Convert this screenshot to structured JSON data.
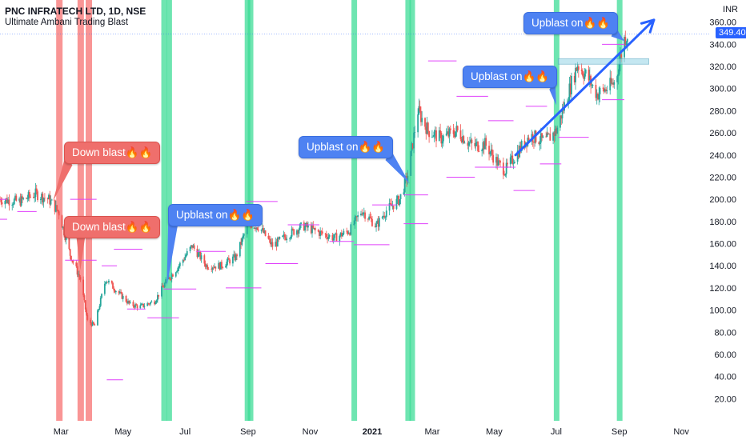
{
  "header": {
    "title": "PNC INFRATECH LTD, 1D, NSE",
    "indicator": "Ultimate Ambani Trading Blast"
  },
  "currency_label": "INR",
  "last_price_label": "349.40",
  "colors": {
    "up_candle": "#26a69a",
    "down_candle": "#ef5350",
    "blast_up_band": "#3ddc97",
    "blast_down_band": "#f77b7b",
    "callout_up": "#4e82f2",
    "callout_down": "#ef6f6c",
    "level_line": "#e040fb",
    "trend_arrow": "#2962ff",
    "price_tag": "#2962ff"
  },
  "chart_data": {
    "type": "candlestick",
    "title": "PNC INFRATECH LTD, 1D, NSE",
    "subtitle": "Ultimate Ambani Trading Blast",
    "y_unit": "INR",
    "ylim": [
      0,
      380
    ],
    "y_ticks": [
      20,
      40,
      60,
      80,
      100,
      120,
      140,
      160,
      180,
      200,
      220,
      240,
      260,
      280,
      300,
      320,
      340,
      360
    ],
    "x_tick_labels": [
      "Mar",
      "May",
      "Jul",
      "Sep",
      "Nov",
      "2021",
      "Mar",
      "May",
      "Jul",
      "Sep",
      "Nov"
    ],
    "x_range": [
      "2020-01-01",
      "2021-11-30"
    ],
    "last_price": 349.4,
    "close_path": [
      [
        "2020-01-01",
        200
      ],
      [
        "2020-01-20",
        198
      ],
      [
        "2020-02-05",
        205
      ],
      [
        "2020-02-18",
        200
      ],
      [
        "2020-02-28",
        188
      ],
      [
        "2020-03-10",
        150
      ],
      [
        "2020-03-20",
        128
      ],
      [
        "2020-03-27",
        90
      ],
      [
        "2020-04-03",
        86
      ],
      [
        "2020-04-14",
        128
      ],
      [
        "2020-04-25",
        117
      ],
      [
        "2020-05-08",
        105
      ],
      [
        "2020-05-18",
        103
      ],
      [
        "2020-06-01",
        108
      ],
      [
        "2020-06-12",
        125
      ],
      [
        "2020-06-25",
        140
      ],
      [
        "2020-07-08",
        158
      ],
      [
        "2020-07-22",
        140
      ],
      [
        "2020-08-05",
        140
      ],
      [
        "2020-08-20",
        148
      ],
      [
        "2020-09-01",
        178
      ],
      [
        "2020-09-12",
        175
      ],
      [
        "2020-09-25",
        158
      ],
      [
        "2020-10-10",
        168
      ],
      [
        "2020-10-25",
        176
      ],
      [
        "2020-11-10",
        170
      ],
      [
        "2020-11-25",
        165
      ],
      [
        "2020-12-10",
        172
      ],
      [
        "2020-12-22",
        190
      ],
      [
        "2021-01-05",
        176
      ],
      [
        "2021-01-15",
        190
      ],
      [
        "2021-01-28",
        200
      ],
      [
        "2021-02-05",
        222
      ],
      [
        "2021-02-15",
        280
      ],
      [
        "2021-02-25",
        262
      ],
      [
        "2021-03-10",
        255
      ],
      [
        "2021-03-25",
        262
      ],
      [
        "2021-04-10",
        248
      ],
      [
        "2021-04-22",
        250
      ],
      [
        "2021-05-05",
        232
      ],
      [
        "2021-05-12",
        226
      ],
      [
        "2021-05-22",
        240
      ],
      [
        "2021-06-05",
        258
      ],
      [
        "2021-06-20",
        252
      ],
      [
        "2021-07-01",
        262
      ],
      [
        "2021-07-08",
        282
      ],
      [
        "2021-07-22",
        322
      ],
      [
        "2021-08-01",
        310
      ],
      [
        "2021-08-10",
        295
      ],
      [
        "2021-08-20",
        300
      ],
      [
        "2021-08-28",
        306
      ],
      [
        "2021-09-06",
        345
      ],
      [
        "2021-09-09",
        349.4
      ]
    ],
    "blast_up_dates": [
      "2020-06-10",
      "2020-06-15",
      "2020-08-31",
      "2020-09-03",
      "2020-12-14",
      "2021-02-05",
      "2021-02-09",
      "2021-07-01",
      "2021-09-01"
    ],
    "blast_down_dates": [
      "2020-02-28",
      "2020-03-20",
      "2020-03-28"
    ],
    "levels": [
      {
        "y": 200,
        "from": "2020-01-01",
        "to": "2020-01-08"
      },
      {
        "y": 182,
        "from": "2020-01-01",
        "to": "2020-01-08"
      },
      {
        "y": 189,
        "from": "2020-01-18",
        "to": "2020-02-06"
      },
      {
        "y": 200,
        "from": "2020-03-10",
        "to": "2020-04-05"
      },
      {
        "y": 145,
        "from": "2020-03-05",
        "to": "2020-04-05"
      },
      {
        "y": 140,
        "from": "2020-04-10",
        "to": "2020-04-25"
      },
      {
        "y": 155,
        "from": "2020-04-22",
        "to": "2020-05-20"
      },
      {
        "y": 37,
        "from": "2020-04-15",
        "to": "2020-05-01"
      },
      {
        "y": 101,
        "from": "2020-05-05",
        "to": "2020-05-23"
      },
      {
        "y": 93,
        "from": "2020-05-25",
        "to": "2020-06-25"
      },
      {
        "y": 119,
        "from": "2020-06-10",
        "to": "2020-07-12"
      },
      {
        "y": 153,
        "from": "2020-07-12",
        "to": "2020-08-10"
      },
      {
        "y": 120,
        "from": "2020-08-10",
        "to": "2020-09-14"
      },
      {
        "y": 198,
        "from": "2020-08-30",
        "to": "2020-09-30"
      },
      {
        "y": 142,
        "from": "2020-09-18",
        "to": "2020-10-20"
      },
      {
        "y": 177,
        "from": "2020-10-10",
        "to": "2020-11-10"
      },
      {
        "y": 162,
        "from": "2020-11-20",
        "to": "2020-12-14"
      },
      {
        "y": 159,
        "from": "2020-12-14",
        "to": "2021-01-18"
      },
      {
        "y": 195,
        "from": "2021-01-01",
        "to": "2021-01-25"
      },
      {
        "y": 204,
        "from": "2021-02-01",
        "to": "2021-02-25"
      },
      {
        "y": 178,
        "from": "2021-02-01",
        "to": "2021-02-25"
      },
      {
        "y": 325,
        "from": "2021-02-25",
        "to": "2021-03-25"
      },
      {
        "y": 293,
        "from": "2021-03-25",
        "to": "2021-04-25"
      },
      {
        "y": 271,
        "from": "2021-04-25",
        "to": "2021-05-20"
      },
      {
        "y": 220,
        "from": "2021-03-15",
        "to": "2021-04-12"
      },
      {
        "y": 229,
        "from": "2021-04-12",
        "to": "2021-05-22"
      },
      {
        "y": 208,
        "from": "2021-05-20",
        "to": "2021-06-10"
      },
      {
        "y": 284,
        "from": "2021-06-01",
        "to": "2021-06-22"
      },
      {
        "y": 232,
        "from": "2021-06-15",
        "to": "2021-07-06"
      },
      {
        "y": 256,
        "from": "2021-07-03",
        "to": "2021-08-02"
      },
      {
        "y": 340,
        "from": "2021-08-15",
        "to": "2021-09-06"
      },
      {
        "y": 290,
        "from": "2021-08-15",
        "to": "2021-09-06"
      }
    ],
    "resistance_box": {
      "from": "2021-07-03",
      "to": "2021-09-30",
      "y_low": 322,
      "y_high": 327
    },
    "trend_arrow": {
      "from": [
        "2021-05-22",
        240
      ],
      "to": [
        "2021-10-05",
        362
      ]
    },
    "annotations": [
      {
        "text": "Down blast🔥🔥",
        "kind": "down",
        "point": [
          "2020-02-22",
          198
        ]
      },
      {
        "text": "Down blast🔥🔥",
        "kind": "down",
        "point": [
          "2020-03-20",
          136
        ]
      },
      {
        "text": "Upblast on🔥🔥",
        "kind": "up",
        "point": [
          "2020-06-13",
          121
        ]
      },
      {
        "text": "Upblast on🔥🔥",
        "kind": "up",
        "point": [
          "2021-02-07",
          214
        ]
      },
      {
        "text": "Upblast on🔥🔥",
        "kind": "up",
        "point": [
          "2021-07-01",
          285
        ]
      },
      {
        "text": "Upblast on🔥🔥",
        "kind": "up",
        "point": [
          "2021-09-06",
          343
        ]
      }
    ]
  }
}
